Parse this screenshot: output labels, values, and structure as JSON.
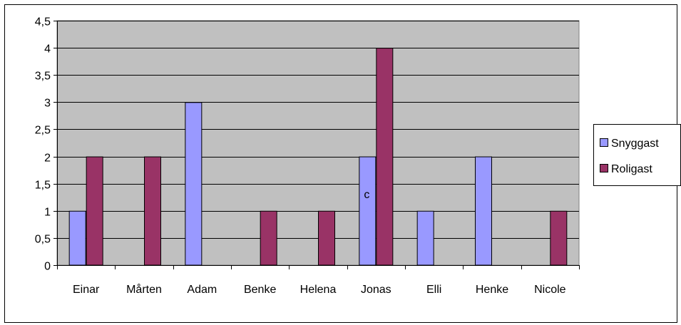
{
  "chart_data": {
    "type": "bar",
    "categories": [
      "Einar",
      "Mårten",
      "Adam",
      "Benke",
      "Helena",
      "Jonas",
      "Elli",
      "Henke",
      "Nicole"
    ],
    "series": [
      {
        "name": "Snyggast",
        "values": [
          1,
          0,
          3,
          0,
          0,
          2,
          1,
          2,
          0
        ],
        "color": "#9999FF"
      },
      {
        "name": "Roligast",
        "values": [
          2,
          2,
          0,
          1,
          1,
          4,
          0,
          0,
          1
        ],
        "color": "#993366"
      }
    ],
    "ylim": [
      0,
      4.5
    ],
    "yticks": [
      "0",
      "0,5",
      "1",
      "1,5",
      "2",
      "2,5",
      "3",
      "3,5",
      "4",
      "4,5"
    ],
    "ytick_values": [
      0,
      0.5,
      1,
      1.5,
      2,
      2.5,
      3,
      3.5,
      4,
      4.5
    ],
    "grid": true,
    "plot_background": "#C0C0C0",
    "legend_position": "right",
    "annotations": [
      {
        "text": "c",
        "category": "Jonas",
        "series": "Snyggast",
        "y": 1.3
      }
    ],
    "title": "",
    "xlabel": "",
    "ylabel": ""
  }
}
